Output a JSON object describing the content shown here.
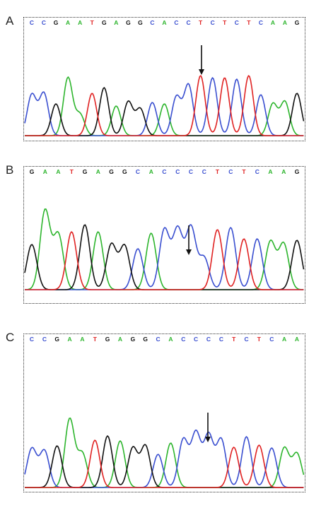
{
  "colors": {
    "A": "#2db52d",
    "C": "#3a4fd0",
    "G": "#111111",
    "T": "#e02222"
  },
  "panels": [
    {
      "label": "A",
      "sequence": [
        "C",
        "C",
        "G",
        "A",
        "A",
        "T",
        "G",
        "A",
        "G",
        "G",
        "C",
        "A",
        "C",
        "C",
        "T",
        "C",
        "T",
        "C",
        "T",
        "C",
        "A",
        "A",
        "G"
      ]
    },
    {
      "label": "B",
      "sequence": [
        "G",
        "A",
        "A",
        "T",
        "G",
        "A",
        "G",
        "G",
        "C",
        "A",
        "C",
        "C",
        "C",
        "C",
        "T",
        "C",
        "T",
        "C",
        "A",
        "A",
        "G"
      ]
    },
    {
      "label": "C",
      "sequence": [
        "C",
        "C",
        "G",
        "A",
        "A",
        "T",
        "G",
        "A",
        "G",
        "G",
        "C",
        "A",
        "C",
        "C",
        "C",
        "C",
        "T",
        "C",
        "T",
        "C",
        "A",
        "A"
      ]
    }
  ]
}
